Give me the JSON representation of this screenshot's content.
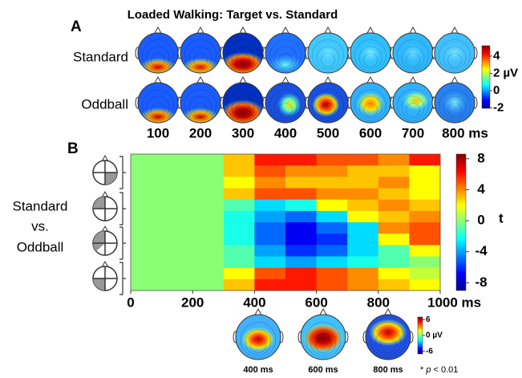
{
  "figure_title": "Loaded Walking: Target vs. Standard",
  "panel_a": {
    "label": "A",
    "rows": [
      "Standard",
      "Oddball"
    ],
    "times": [
      "100",
      "200",
      "300",
      "400",
      "500",
      "600",
      "700",
      "800 ms"
    ],
    "colorbar": {
      "lim": [
        -2.05,
        5.2
      ],
      "ticks": [
        4,
        {
          "value": 2,
          "label": "2 µV"
        },
        0,
        -2
      ]
    }
  },
  "chart_data": {
    "type": "heatmap",
    "panel_label": "B",
    "row_label": [
      "Standard",
      "vs.",
      "Oddball"
    ],
    "xlim": [
      0,
      1000
    ],
    "xticks": [
      0,
      200,
      400,
      600,
      800,
      {
        "value": 1000,
        "label": "1000 ms"
      }
    ],
    "z": [
      [
        0,
        0,
        0,
        3,
        6,
        6,
        5,
        5,
        4,
        6
      ],
      [
        0,
        0,
        0,
        3,
        5,
        4,
        4,
        3,
        3,
        2
      ],
      [
        0,
        0,
        0,
        2,
        4,
        3,
        3,
        3,
        4,
        2
      ],
      [
        0,
        0,
        0,
        3,
        5,
        5,
        4,
        4,
        3,
        2
      ],
      [
        0,
        0,
        0,
        -1,
        -3,
        -2,
        2,
        3,
        4,
        3
      ],
      [
        0,
        0,
        0,
        -2,
        -4,
        -5,
        -3,
        2,
        3,
        4
      ],
      [
        0,
        0,
        0,
        -2,
        -5,
        -7,
        -5,
        -3,
        4,
        5
      ],
      [
        0,
        0,
        0,
        -2,
        -5,
        -7,
        -6,
        -3,
        2,
        5
      ],
      [
        0,
        0,
        0,
        -1,
        -4,
        -6,
        -5,
        -3,
        -1,
        2
      ],
      [
        0,
        0,
        0,
        -1,
        -3,
        -4,
        -3,
        -2,
        -1,
        0
      ],
      [
        0,
        0,
        0,
        2,
        5,
        6,
        5,
        4,
        2,
        1
      ],
      [
        0,
        0,
        0,
        3,
        6,
        6,
        5,
        4,
        3,
        2
      ]
    ],
    "zlim": [
      -9,
      8.6
    ],
    "zticks": [
      8,
      4,
      0,
      -4,
      -8
    ],
    "colorbar_label": "t",
    "colormap": "jet"
  },
  "panel_c": {
    "times": [
      "400 ms",
      "600 ms",
      "800 ms"
    ],
    "colorbar": {
      "lim": [
        -7,
        7
      ],
      "ticks": [
        6,
        {
          "value": 0,
          "label": "0 µV"
        },
        -6
      ]
    },
    "note": [
      "*",
      "p",
      "< 0.01"
    ]
  }
}
